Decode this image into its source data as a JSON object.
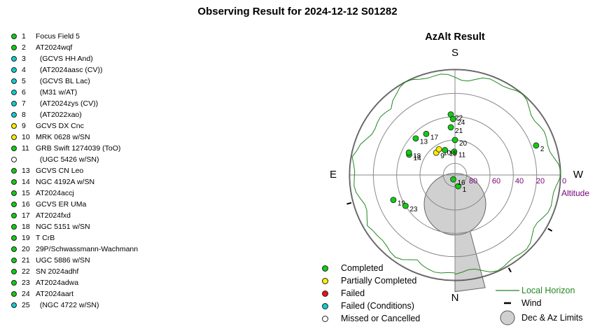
{
  "title": "Observing Result for 2024-12-12 S01282",
  "colors": {
    "completed": "#11cc11",
    "partial": "#ffee00",
    "failed": "#ee1111",
    "failed_conditions": "#11cccc",
    "missed": "#ffffff",
    "horizon": "#228822",
    "altitude_labels": "#770077",
    "limits_fill": "#d0d0d0"
  },
  "targets": [
    {
      "num": "1",
      "name": "Focus Field 5",
      "status": "completed"
    },
    {
      "num": "2",
      "name": "AT2024wqf",
      "status": "completed"
    },
    {
      "num": "3",
      "name": "  (GCVS HH And)",
      "status": "failed_conditions"
    },
    {
      "num": "4",
      "name": "  (AT2024aasc (CV))",
      "status": "failed_conditions"
    },
    {
      "num": "5",
      "name": "  (GCVS BL Lac)",
      "status": "failed_conditions"
    },
    {
      "num": "6",
      "name": "  (M31 w/AT)",
      "status": "failed_conditions"
    },
    {
      "num": "7",
      "name": "  (AT2024zys (CV))",
      "status": "failed_conditions"
    },
    {
      "num": "8",
      "name": "  (AT2022xao)",
      "status": "failed_conditions"
    },
    {
      "num": "9",
      "name": "GCVS DX Cnc",
      "status": "partial"
    },
    {
      "num": "10",
      "name": "MRK 0628 w/SN",
      "status": "partial"
    },
    {
      "num": "11",
      "name": "GRB Swift 1274039 (ToO)",
      "status": "completed"
    },
    {
      "num": "",
      "name": "  (UGC 5426 w/SN)",
      "status": "missed"
    },
    {
      "num": "13",
      "name": "GCVS CN Leo",
      "status": "completed"
    },
    {
      "num": "14",
      "name": "NGC 4192A w/SN",
      "status": "completed"
    },
    {
      "num": "15",
      "name": "AT2024accj",
      "status": "completed"
    },
    {
      "num": "16",
      "name": "GCVS ER UMa",
      "status": "completed"
    },
    {
      "num": "17",
      "name": "AT2024fxd",
      "status": "completed"
    },
    {
      "num": "18",
      "name": "NGC 5151 w/SN",
      "status": "completed"
    },
    {
      "num": "19",
      "name": "T CrB",
      "status": "completed"
    },
    {
      "num": "20",
      "name": "29P/Schwassmann-Wachmann",
      "status": "completed"
    },
    {
      "num": "21",
      "name": "UGC 5886 w/SN",
      "status": "completed"
    },
    {
      "num": "22",
      "name": "SN 2024adhf",
      "status": "completed"
    },
    {
      "num": "23",
      "name": "AT2024adwa",
      "status": "completed"
    },
    {
      "num": "24",
      "name": "AT2024aart",
      "status": "completed"
    },
    {
      "num": "25",
      "name": "  (NGC 4722 w/SN)",
      "status": "failed_conditions"
    }
  ],
  "azalt": {
    "title": "AzAlt Result",
    "directions": {
      "south": "S",
      "north": "N",
      "east": "E",
      "west": "W"
    },
    "altitude_ticks": [
      "80",
      "60",
      "40",
      "20",
      "0"
    ],
    "altitude_axis_label": "Altitude",
    "points": [
      {
        "label": "1",
        "az": 344,
        "alt": 80,
        "status": "completed"
      },
      {
        "label": "2",
        "az": 250,
        "alt": 16,
        "status": "completed"
      },
      {
        "label": "9",
        "az": 140,
        "alt": 65,
        "status": "partial"
      },
      {
        "label": "10",
        "az": 148,
        "alt": 64,
        "status": "partial"
      },
      {
        "label": "11",
        "az": 178,
        "alt": 70,
        "status": "completed"
      },
      {
        "label": "13",
        "az": 133,
        "alt": 44,
        "status": "completed"
      },
      {
        "label": "14",
        "az": 114,
        "alt": 47,
        "status": "completed"
      },
      {
        "label": "15",
        "az": 158,
        "alt": 67,
        "status": "completed"
      },
      {
        "label": "16",
        "az": 22,
        "alt": 86,
        "status": "completed"
      },
      {
        "label": "17",
        "az": 145,
        "alt": 47,
        "status": "completed"
      },
      {
        "label": "18",
        "az": 116,
        "alt": 46,
        "status": "completed"
      },
      {
        "label": "19",
        "az": 68,
        "alt": 33,
        "status": "completed"
      },
      {
        "label": "20",
        "az": 180,
        "alt": 60,
        "status": "completed"
      },
      {
        "label": "21",
        "az": 175,
        "alt": 49,
        "status": "completed"
      },
      {
        "label": "22",
        "az": 176,
        "alt": 38,
        "status": "completed"
      },
      {
        "label": "23",
        "az": 58,
        "alt": 40,
        "status": "completed"
      },
      {
        "label": "24",
        "az": 178,
        "alt": 42,
        "status": "completed"
      }
    ],
    "legend_left": [
      {
        "key": "completed",
        "label": "Completed"
      },
      {
        "key": "partial",
        "label": "Partially Completed"
      },
      {
        "key": "failed",
        "label": "Failed"
      },
      {
        "key": "failed_conditions",
        "label": "Failed (Conditions)"
      },
      {
        "key": "missed",
        "label": "Missed or Cancelled"
      }
    ],
    "legend_right": {
      "horizon": "Local Horizon",
      "wind": "Wind",
      "limits": "Dec & Az Limits"
    }
  }
}
